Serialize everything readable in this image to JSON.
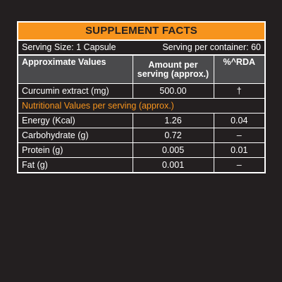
{
  "title": "SUPPLEMENT FACTS",
  "serving": {
    "size": "Serving Size: 1 Capsule",
    "per_container": "Serving per container: 60"
  },
  "columns": {
    "approx_values": "Approximate Values",
    "amount_per_serving": "Amount per serving (approx.)",
    "rda": "%^RDA"
  },
  "rows": [
    {
      "name": "Curcumin extract (mg)",
      "amount": "500.00",
      "rda": "†"
    }
  ],
  "section_label": "Nutritional Values per serving (approx.)",
  "nutrition_rows": [
    {
      "name": "Energy (Kcal)",
      "amount": "1.26",
      "rda": "0.04"
    },
    {
      "name": "Carbohydrate (g)",
      "amount": "0.72",
      "rda": "–"
    },
    {
      "name": "Protein (g)",
      "amount": "0.005",
      "rda": "0.01"
    },
    {
      "name": "Fat (g)",
      "amount": "0.001",
      "rda": "–"
    }
  ],
  "colors": {
    "background": "#231f20",
    "accent": "#f7941d",
    "header_row": "#4a4a4c",
    "border": "#ffffff"
  }
}
